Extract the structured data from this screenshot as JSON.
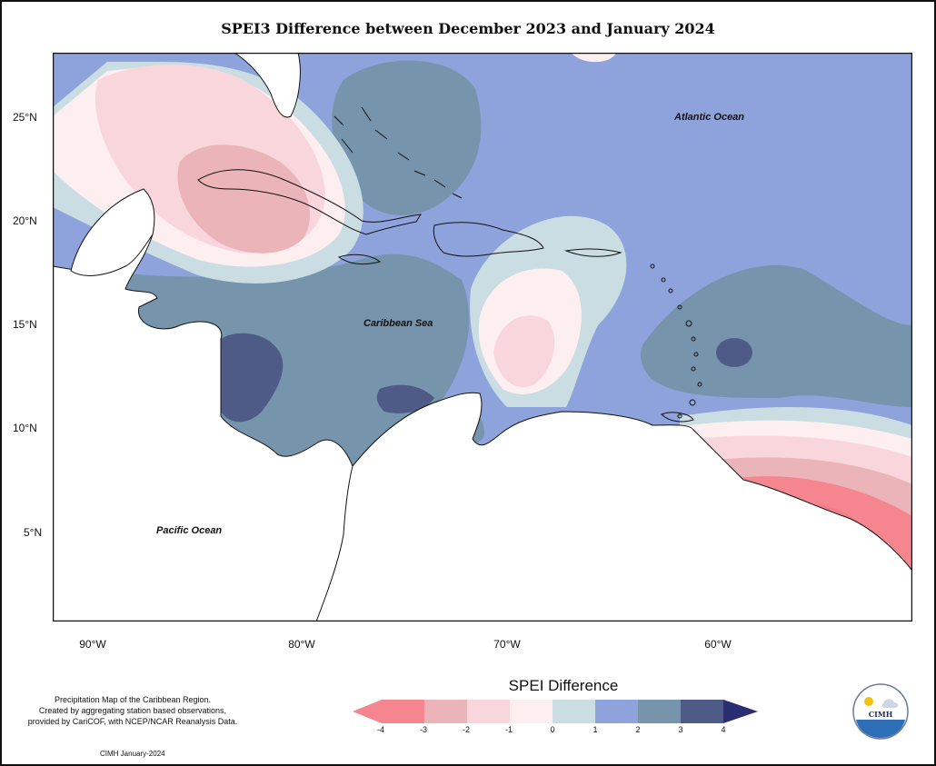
{
  "title": "SPEI3 Difference between December 2023 and January 2024",
  "map": {
    "lat_ticks": [
      "25°N",
      "20°N",
      "15°N",
      "10°N",
      "5°N"
    ],
    "lon_ticks": [
      "90°W",
      "80°W",
      "70°W",
      "60°W"
    ],
    "labels": {
      "atlantic": "Atlantic Ocean",
      "caribbean": "Caribbean Sea",
      "pacific": "Pacific Ocean"
    }
  },
  "legend": {
    "title": "SPEI Difference",
    "ticks": [
      "-4",
      "-3",
      "-2",
      "-1",
      "0",
      "1",
      "2",
      "3",
      "4"
    ],
    "colors": {
      "lt_-3": "#f5858f",
      "-3_-2": "#ebb4b8",
      "-2_-1": "#f9d6dc",
      "-1_0": "#fdeef0",
      "0_1": "#c9dde3",
      "1_2": "#8ea3dc",
      "2_3": "#7694ab",
      "3_4": "#4f5b87",
      "gt_4": "#2a2d70"
    }
  },
  "notes": {
    "line1": "Precipitation Map of the Caribbean Region.",
    "line2": "Created by aggregating station based observations,",
    "line3": "provided by CariCOF, with NCEP/NCAR Reanalysis Data.",
    "credit": "CIMH January-2024"
  },
  "logo": {
    "text": "CIMH"
  }
}
